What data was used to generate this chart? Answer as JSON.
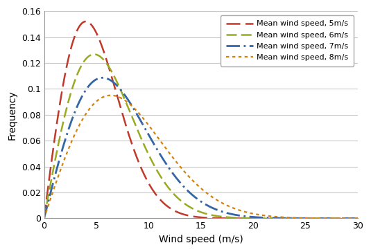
{
  "title": "",
  "xlabel": "Wind speed (m/s)",
  "ylabel": "Frequency",
  "xlim": [
    0,
    30
  ],
  "ylim": [
    0,
    0.16
  ],
  "yticks": [
    0,
    0.02,
    0.04,
    0.06,
    0.08,
    0.1,
    0.12,
    0.14,
    0.16
  ],
  "ytick_labels": [
    "0",
    "0.02",
    "0.04",
    "0.06",
    "0.08",
    "0.1",
    "0.12",
    "0.14",
    "0.16"
  ],
  "xticks": [
    0,
    5,
    10,
    15,
    20,
    25,
    30
  ],
  "mean_speeds": [
    5,
    6,
    7,
    8
  ],
  "colors": [
    "#c0392b",
    "#9aaa20",
    "#3465a4",
    "#d4820a"
  ],
  "legend_labels": [
    "Mean wind speed, 5m/s",
    "Mean wind speed, 6m/s",
    "Mean wind speed, 7m/s",
    "Mean wind speed, 8m/s"
  ],
  "background_color": "#ffffff",
  "grid_color": "#c8c8c8",
  "figsize": [
    5.35,
    3.64
  ],
  "dpi": 100
}
